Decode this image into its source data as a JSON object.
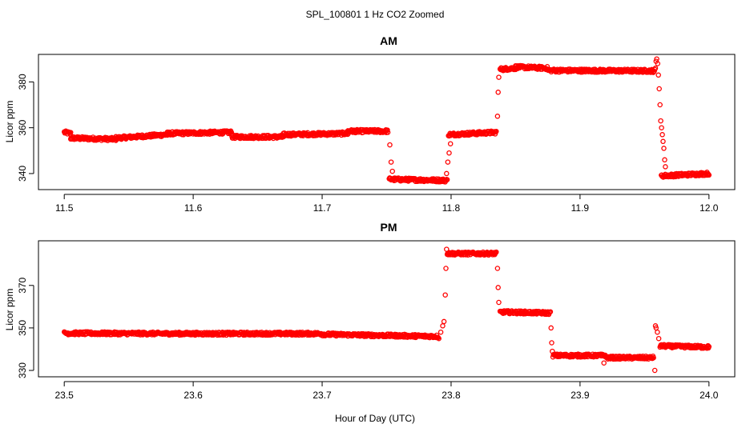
{
  "figure": {
    "title": "SPL_100801  1 Hz CO2 Zoomed",
    "xlabel": "Hour of Day (UTC)"
  },
  "colors": {
    "points": "#ff0000",
    "axes": "#000000",
    "background": "#ffffff"
  },
  "chart_data": [
    {
      "type": "scatter",
      "title": "AM",
      "xlabel": "",
      "ylabel": "Licor ppm",
      "xlim": [
        11.48,
        12.02
      ],
      "ylim": [
        333,
        392
      ],
      "xticks": [
        11.5,
        11.6,
        11.7,
        11.8,
        11.9,
        12.0
      ],
      "xtick_labels": [
        "11.5",
        "11.6",
        "11.7",
        "11.8",
        "11.9",
        "12.0"
      ],
      "yticks": [
        340,
        360,
        380
      ],
      "ytick_labels": [
        "340",
        "360",
        "380"
      ],
      "grid": false,
      "marker": "open-circle",
      "series": [
        {
          "segments": [
            {
              "x": [
                11.5,
                11.505
              ],
              "y": [
                358,
                357.5
              ]
            },
            {
              "x": [
                11.505,
                11.54
              ],
              "y": [
                355.5,
                355
              ]
            },
            {
              "x": [
                11.54,
                11.58
              ],
              "y": [
                355.5,
                357
              ]
            },
            {
              "x": [
                11.58,
                11.63
              ],
              "y": [
                357.5,
                358
              ]
            },
            {
              "x": [
                11.63,
                11.67
              ],
              "y": [
                356,
                356
              ]
            },
            {
              "x": [
                11.67,
                11.72
              ],
              "y": [
                357,
                357.5
              ]
            },
            {
              "x": [
                11.72,
                11.751
              ],
              "y": [
                358.5,
                358.5
              ]
            },
            {
              "x": [
                11.752,
                11.797
              ],
              "y": [
                337.5,
                337
              ]
            },
            {
              "x": [
                11.798,
                11.835
              ],
              "y": [
                357,
                358
              ]
            },
            {
              "x": [
                11.838,
                11.85
              ],
              "y": [
                385.5,
                386
              ]
            },
            {
              "x": [
                11.85,
                11.875
              ],
              "y": [
                386.5,
                386
              ]
            },
            {
              "x": [
                11.875,
                11.958
              ],
              "y": [
                385,
                384.8
              ]
            },
            {
              "x": [
                11.963,
                12.0
              ],
              "y": [
                339,
                340
              ]
            }
          ],
          "transitions": [
            {
              "x": 11.7525,
              "y": 352.5
            },
            {
              "x": 11.7535,
              "y": 345
            },
            {
              "x": 11.7545,
              "y": 341
            },
            {
              "x": 11.7965,
              "y": 340
            },
            {
              "x": 11.7975,
              "y": 345
            },
            {
              "x": 11.7985,
              "y": 349
            },
            {
              "x": 11.7995,
              "y": 353
            },
            {
              "x": 11.836,
              "y": 365
            },
            {
              "x": 11.8365,
              "y": 375.5
            },
            {
              "x": 11.837,
              "y": 382
            },
            {
              "x": 11.9585,
              "y": 386
            },
            {
              "x": 11.959,
              "y": 389
            },
            {
              "x": 11.9595,
              "y": 390
            },
            {
              "x": 11.9602,
              "y": 388
            },
            {
              "x": 11.9608,
              "y": 383
            },
            {
              "x": 11.9614,
              "y": 377
            },
            {
              "x": 11.962,
              "y": 370
            },
            {
              "x": 11.9626,
              "y": 363
            },
            {
              "x": 11.9632,
              "y": 360
            },
            {
              "x": 11.9638,
              "y": 357
            },
            {
              "x": 11.9644,
              "y": 354
            },
            {
              "x": 11.965,
              "y": 351
            },
            {
              "x": 11.9656,
              "y": 346
            },
            {
              "x": 11.9662,
              "y": 343
            }
          ]
        }
      ]
    },
    {
      "type": "scatter",
      "title": "PM",
      "xlabel": "",
      "ylabel": "Licor ppm",
      "xlim": [
        23.48,
        24.02
      ],
      "ylim": [
        327,
        391
      ],
      "xticks": [
        23.5,
        23.6,
        23.7,
        23.8,
        23.9,
        24.0
      ],
      "xtick_labels": [
        "23.5",
        "23.6",
        "23.7",
        "23.8",
        "23.9",
        "24.0"
      ],
      "yticks": [
        330,
        350,
        370
      ],
      "ytick_labels": [
        "330",
        "350",
        "370"
      ],
      "grid": false,
      "marker": "open-circle",
      "series": [
        {
          "segments": [
            {
              "x": [
                23.5,
                23.6
              ],
              "y": [
                347.5,
                347.3
              ]
            },
            {
              "x": [
                23.6,
                23.7
              ],
              "y": [
                347.3,
                347.3
              ]
            },
            {
              "x": [
                23.7,
                23.79
              ],
              "y": [
                347,
                346
              ]
            },
            {
              "x": [
                23.797,
                23.835
              ],
              "y": [
                385,
                385
              ]
            },
            {
              "x": [
                23.838,
                23.877
              ],
              "y": [
                357.5,
                357
              ]
            },
            {
              "x": [
                23.879,
                23.92
              ],
              "y": [
                337,
                337
              ]
            },
            {
              "x": [
                23.92,
                23.957
              ],
              "y": [
                336,
                336
              ]
            },
            {
              "x": [
                23.962,
                24.0
              ],
              "y": [
                341.5,
                341
              ]
            }
          ],
          "transitions": [
            {
              "x": 23.7905,
              "y": 345
            },
            {
              "x": 23.792,
              "y": 348
            },
            {
              "x": 23.7935,
              "y": 351
            },
            {
              "x": 23.7945,
              "y": 353
            },
            {
              "x": 23.7955,
              "y": 365.5
            },
            {
              "x": 23.796,
              "y": 378
            },
            {
              "x": 23.7965,
              "y": 387
            },
            {
              "x": 23.836,
              "y": 378
            },
            {
              "x": 23.8365,
              "y": 369
            },
            {
              "x": 23.837,
              "y": 362
            },
            {
              "x": 23.8775,
              "y": 350
            },
            {
              "x": 23.878,
              "y": 343
            },
            {
              "x": 23.8785,
              "y": 339
            },
            {
              "x": 23.9185,
              "y": 333.5
            },
            {
              "x": 23.958,
              "y": 330
            },
            {
              "x": 23.9585,
              "y": 351
            },
            {
              "x": 23.959,
              "y": 350
            },
            {
              "x": 23.96,
              "y": 348
            },
            {
              "x": 23.961,
              "y": 345
            }
          ]
        }
      ]
    }
  ]
}
